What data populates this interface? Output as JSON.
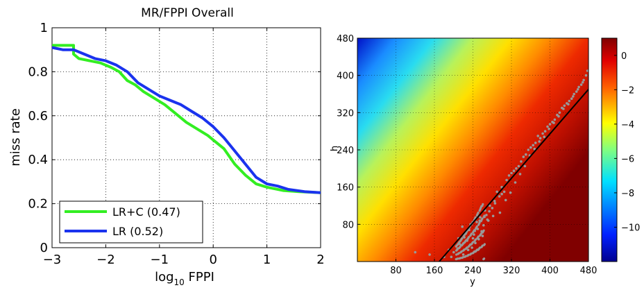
{
  "chart_data": [
    {
      "type": "line",
      "title": "MR/FPPI Overall",
      "xlabel_main": "log",
      "xlabel_sub": "10",
      "xlabel_tail": " FPPI",
      "ylabel": "miss rate",
      "xlim": [
        -3,
        2
      ],
      "ylim": [
        0,
        1
      ],
      "xticks": [
        -3,
        -2,
        -1,
        0,
        1,
        2
      ],
      "yticks": [
        0,
        0.2,
        0.4,
        0.6,
        0.8,
        1
      ],
      "xtick_labels": [
        "−3",
        "−2",
        "−1",
        "0",
        "1",
        "2"
      ],
      "ytick_labels": [
        "0",
        "0.2",
        "0.4",
        "0.6",
        "0.8",
        "1"
      ],
      "grid": true,
      "legend_position": "bottom-left",
      "series": [
        {
          "name": "LR+C (0.47)",
          "color": "#33ee22",
          "x": [
            -3.0,
            -2.6,
            -2.6,
            -2.5,
            -2.3,
            -2.1,
            -1.9,
            -1.75,
            -1.6,
            -1.45,
            -1.3,
            -1.1,
            -0.9,
            -0.7,
            -0.5,
            -0.3,
            -0.1,
            0.0,
            0.2,
            0.4,
            0.6,
            0.8,
            1.0,
            1.3,
            1.6,
            2.0
          ],
          "y": [
            0.92,
            0.92,
            0.88,
            0.86,
            0.85,
            0.84,
            0.82,
            0.8,
            0.76,
            0.74,
            0.71,
            0.68,
            0.65,
            0.61,
            0.57,
            0.54,
            0.51,
            0.49,
            0.45,
            0.38,
            0.33,
            0.29,
            0.275,
            0.26,
            0.255,
            0.25
          ]
        },
        {
          "name": "LR (0.52)",
          "color": "#1a33ee",
          "x": [
            -3.0,
            -2.8,
            -2.6,
            -2.4,
            -2.2,
            -2.0,
            -1.8,
            -1.6,
            -1.4,
            -1.2,
            -1.0,
            -0.8,
            -0.6,
            -0.4,
            -0.2,
            0.0,
            0.2,
            0.4,
            0.6,
            0.8,
            1.0,
            1.2,
            1.4,
            1.7,
            2.0
          ],
          "y": [
            0.91,
            0.9,
            0.9,
            0.88,
            0.86,
            0.85,
            0.83,
            0.8,
            0.75,
            0.72,
            0.69,
            0.67,
            0.65,
            0.62,
            0.59,
            0.55,
            0.5,
            0.44,
            0.38,
            0.32,
            0.29,
            0.28,
            0.265,
            0.255,
            0.25
          ]
        }
      ]
    },
    {
      "type": "heatmap",
      "xlabel": "y",
      "ylabel": "h",
      "xlim": [
        0,
        480
      ],
      "ylim": [
        0,
        480
      ],
      "xticks": [
        80,
        160,
        240,
        320,
        400,
        480
      ],
      "yticks": [
        80,
        160,
        240,
        320,
        400,
        480
      ],
      "xtick_labels": [
        "80",
        "160",
        "240",
        "320",
        "400",
        "480"
      ],
      "ytick_labels": [
        "80",
        "160",
        "240",
        "320",
        "400",
        "480"
      ],
      "colorbar_range": [
        -12,
        1
      ],
      "colorbar_ticks": [
        0,
        -2,
        -4,
        -6,
        -8,
        -10
      ],
      "colorbar_tick_labels": [
        "0",
        "−2",
        "−4",
        "−6",
        "−8",
        "−10"
      ],
      "colormap": "jet",
      "fit_line": {
        "color": "#000000",
        "x": [
          170,
          480
        ],
        "y": [
          0,
          370
        ]
      },
      "scatter_color": "#999999",
      "scatter_points": [
        [
          200,
          20
        ],
        [
          215,
          35
        ],
        [
          230,
          25
        ],
        [
          240,
          50
        ],
        [
          225,
          60
        ],
        [
          250,
          70
        ],
        [
          260,
          55
        ],
        [
          235,
          80
        ],
        [
          255,
          95
        ],
        [
          270,
          90
        ],
        [
          245,
          40
        ],
        [
          220,
          15
        ],
        [
          265,
          110
        ],
        [
          275,
          120
        ],
        [
          285,
          130
        ],
        [
          290,
          150
        ],
        [
          300,
          160
        ],
        [
          310,
          175
        ],
        [
          320,
          190
        ],
        [
          330,
          200
        ],
        [
          340,
          215
        ],
        [
          350,
          230
        ],
        [
          360,
          245
        ],
        [
          370,
          255
        ],
        [
          380,
          265
        ],
        [
          390,
          280
        ],
        [
          400,
          295
        ],
        [
          410,
          305
        ],
        [
          420,
          320
        ],
        [
          430,
          335
        ],
        [
          440,
          345
        ],
        [
          450,
          360
        ],
        [
          460,
          375
        ],
        [
          470,
          390
        ],
        [
          478,
          410
        ],
        [
          195,
          10
        ],
        [
          208,
          28
        ],
        [
          228,
          45
        ],
        [
          248,
          85
        ],
        [
          238,
          30
        ],
        [
          258,
          65
        ],
        [
          268,
          100
        ],
        [
          280,
          115
        ],
        [
          295,
          140
        ],
        [
          305,
          150
        ],
        [
          315,
          185
        ],
        [
          325,
          195
        ],
        [
          335,
          205
        ],
        [
          345,
          225
        ],
        [
          355,
          240
        ],
        [
          365,
          250
        ],
        [
          375,
          270
        ],
        [
          385,
          275
        ],
        [
          395,
          290
        ],
        [
          405,
          300
        ],
        [
          415,
          315
        ],
        [
          425,
          330
        ],
        [
          435,
          340
        ],
        [
          445,
          350
        ],
        [
          455,
          365
        ],
        [
          465,
          380
        ],
        [
          475,
          400
        ],
        [
          120,
          20
        ],
        [
          150,
          15
        ],
        [
          180,
          10
        ],
        [
          190,
          25
        ],
        [
          210,
          50
        ],
        [
          218,
          75
        ],
        [
          232,
          68
        ],
        [
          242,
          58
        ],
        [
          252,
          48
        ],
        [
          262,
          78
        ],
        [
          272,
          88
        ],
        [
          282,
          98
        ],
        [
          296,
          105
        ],
        [
          308,
          132
        ],
        [
          318,
          148
        ],
        [
          328,
          170
        ],
        [
          338,
          188
        ],
        [
          348,
          205
        ],
        [
          358,
          228
        ],
        [
          368,
          242
        ],
        [
          378,
          258
        ],
        [
          388,
          268
        ],
        [
          398,
          285
        ],
        [
          408,
          298
        ],
        [
          418,
          312
        ],
        [
          428,
          328
        ],
        [
          438,
          338
        ],
        [
          448,
          355
        ],
        [
          458,
          370
        ],
        [
          468,
          385
        ],
        [
          212,
          38
        ],
        [
          222,
          52
        ],
        [
          244,
          66
        ],
        [
          254,
          88
        ],
        [
          264,
          96
        ],
        [
          274,
          108
        ],
        [
          286,
          125
        ],
        [
          300,
          145
        ]
      ]
    }
  ]
}
